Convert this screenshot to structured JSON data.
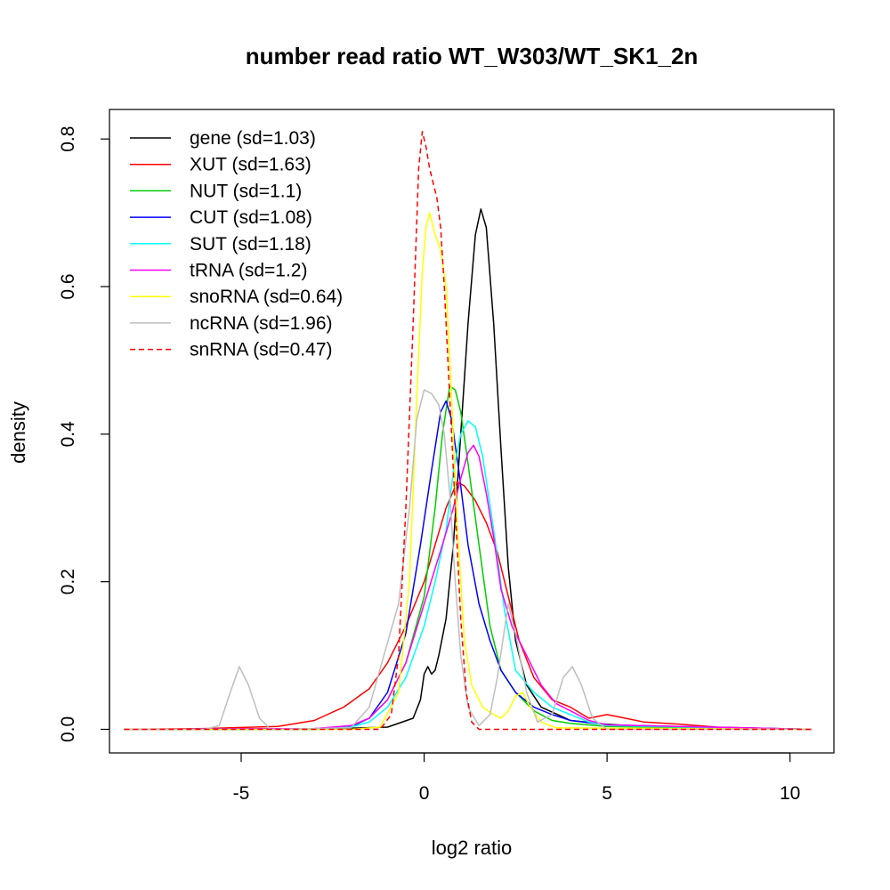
{
  "chart_data": {
    "type": "line",
    "title": "number read ratio WT_W303/WT_SK1_2n",
    "xlabel": "log2 ratio",
    "ylabel": "density",
    "xlim": [
      -8.6,
      11.2
    ],
    "ylim": [
      -0.032,
      0.84
    ],
    "x_ticks": [
      {
        "value": -5,
        "label": "-5"
      },
      {
        "value": 0,
        "label": "0"
      },
      {
        "value": 5,
        "label": "5"
      },
      {
        "value": 10,
        "label": "10"
      }
    ],
    "y_ticks": [
      {
        "value": 0.0,
        "label": "0.0"
      },
      {
        "value": 0.2,
        "label": "0.2"
      },
      {
        "value": 0.4,
        "label": "0.4"
      },
      {
        "value": 0.6,
        "label": "0.6"
      },
      {
        "value": 0.8,
        "label": "0.8"
      }
    ],
    "grid": false,
    "legend_position": "top-left",
    "series": [
      {
        "name": "gene (sd=1.03)",
        "color": "#000000",
        "dash": false,
        "points": [
          [
            -8.2,
            0
          ],
          [
            -3,
            0
          ],
          [
            -1,
            0.003
          ],
          [
            -0.3,
            0.015
          ],
          [
            -0.1,
            0.04
          ],
          [
            0,
            0.075
          ],
          [
            0.1,
            0.085
          ],
          [
            0.2,
            0.075
          ],
          [
            0.3,
            0.08
          ],
          [
            0.4,
            0.1
          ],
          [
            0.6,
            0.15
          ],
          [
            0.8,
            0.25
          ],
          [
            1.0,
            0.4
          ],
          [
            1.2,
            0.55
          ],
          [
            1.4,
            0.67
          ],
          [
            1.55,
            0.705
          ],
          [
            1.7,
            0.68
          ],
          [
            1.9,
            0.55
          ],
          [
            2.1,
            0.38
          ],
          [
            2.3,
            0.22
          ],
          [
            2.5,
            0.12
          ],
          [
            2.8,
            0.06
          ],
          [
            3.2,
            0.03
          ],
          [
            4,
            0.012
          ],
          [
            5,
            0.007
          ],
          [
            6,
            0.004
          ],
          [
            8,
            0.002
          ],
          [
            10.6,
            0
          ]
        ]
      },
      {
        "name": "XUT (sd=1.63)",
        "color": "#ff0000",
        "dash": false,
        "points": [
          [
            -8.2,
            0
          ],
          [
            -6,
            0.001
          ],
          [
            -4,
            0.004
          ],
          [
            -3,
            0.012
          ],
          [
            -2.2,
            0.03
          ],
          [
            -1.5,
            0.055
          ],
          [
            -1,
            0.09
          ],
          [
            -0.5,
            0.14
          ],
          [
            0,
            0.2
          ],
          [
            0.3,
            0.25
          ],
          [
            0.6,
            0.3
          ],
          [
            0.9,
            0.335
          ],
          [
            1.1,
            0.33
          ],
          [
            1.4,
            0.31
          ],
          [
            1.7,
            0.28
          ],
          [
            2.0,
            0.24
          ],
          [
            2.3,
            0.18
          ],
          [
            2.6,
            0.12
          ],
          [
            3.0,
            0.07
          ],
          [
            3.5,
            0.04
          ],
          [
            4,
            0.03
          ],
          [
            4.5,
            0.015
          ],
          [
            5,
            0.02
          ],
          [
            5.5,
            0.015
          ],
          [
            6,
            0.01
          ],
          [
            7,
            0.007
          ],
          [
            8,
            0.003
          ],
          [
            10.6,
            0
          ]
        ]
      },
      {
        "name": "NUT (sd=1.1)",
        "color": "#00cd00",
        "dash": false,
        "points": [
          [
            -8.2,
            0
          ],
          [
            -3,
            0
          ],
          [
            -2,
            0.003
          ],
          [
            -1.5,
            0.015
          ],
          [
            -1,
            0.04
          ],
          [
            -0.5,
            0.09
          ],
          [
            0,
            0.18
          ],
          [
            0.3,
            0.3
          ],
          [
            0.5,
            0.4
          ],
          [
            0.7,
            0.465
          ],
          [
            0.85,
            0.46
          ],
          [
            1.0,
            0.43
          ],
          [
            1.2,
            0.36
          ],
          [
            1.5,
            0.25
          ],
          [
            1.8,
            0.14
          ],
          [
            2.1,
            0.08
          ],
          [
            2.5,
            0.05
          ],
          [
            3,
            0.025
          ],
          [
            3.5,
            0.012
          ],
          [
            4,
            0.008
          ],
          [
            5,
            0.004
          ],
          [
            10.6,
            0
          ]
        ]
      },
      {
        "name": "CUT (sd=1.08)",
        "color": "#0000ff",
        "dash": false,
        "points": [
          [
            -8.2,
            0
          ],
          [
            -3,
            0.001
          ],
          [
            -2,
            0.004
          ],
          [
            -1.5,
            0.015
          ],
          [
            -1,
            0.05
          ],
          [
            -0.5,
            0.13
          ],
          [
            -0.1,
            0.25
          ],
          [
            0.2,
            0.35
          ],
          [
            0.45,
            0.43
          ],
          [
            0.6,
            0.445
          ],
          [
            0.75,
            0.42
          ],
          [
            0.95,
            0.35
          ],
          [
            1.2,
            0.25
          ],
          [
            1.5,
            0.17
          ],
          [
            1.8,
            0.12
          ],
          [
            2.1,
            0.08
          ],
          [
            2.5,
            0.05
          ],
          [
            3,
            0.03
          ],
          [
            3.5,
            0.02
          ],
          [
            4,
            0.012
          ],
          [
            5,
            0.006
          ],
          [
            10.6,
            0
          ]
        ]
      },
      {
        "name": "SUT (sd=1.18)",
        "color": "#00ffff",
        "dash": false,
        "points": [
          [
            -8.2,
            0
          ],
          [
            -3,
            0
          ],
          [
            -2,
            0.003
          ],
          [
            -1.5,
            0.01
          ],
          [
            -1,
            0.03
          ],
          [
            -0.5,
            0.07
          ],
          [
            0,
            0.14
          ],
          [
            0.3,
            0.2
          ],
          [
            0.6,
            0.27
          ],
          [
            0.8,
            0.35
          ],
          [
            1.0,
            0.4
          ],
          [
            1.2,
            0.418
          ],
          [
            1.4,
            0.41
          ],
          [
            1.6,
            0.37
          ],
          [
            1.9,
            0.27
          ],
          [
            2.2,
            0.16
          ],
          [
            2.5,
            0.08
          ],
          [
            3,
            0.05
          ],
          [
            3.5,
            0.03
          ],
          [
            4,
            0.02
          ],
          [
            4.5,
            0.01
          ],
          [
            5,
            0.005
          ],
          [
            10.6,
            0
          ]
        ]
      },
      {
        "name": "tRNA (sd=1.2)",
        "color": "#ff00ff",
        "dash": false,
        "points": [
          [
            -8.2,
            0
          ],
          [
            -3,
            0.001
          ],
          [
            -2,
            0.005
          ],
          [
            -1.5,
            0.015
          ],
          [
            -1,
            0.04
          ],
          [
            -0.5,
            0.09
          ],
          [
            0,
            0.17
          ],
          [
            0.5,
            0.25
          ],
          [
            0.8,
            0.3
          ],
          [
            1.0,
            0.34
          ],
          [
            1.2,
            0.375
          ],
          [
            1.35,
            0.385
          ],
          [
            1.5,
            0.37
          ],
          [
            1.7,
            0.32
          ],
          [
            1.9,
            0.26
          ],
          [
            2.1,
            0.19
          ],
          [
            2.4,
            0.14
          ],
          [
            2.8,
            0.1
          ],
          [
            3.2,
            0.06
          ],
          [
            3.6,
            0.035
          ],
          [
            4,
            0.025
          ],
          [
            4.5,
            0.012
          ],
          [
            5,
            0.006
          ],
          [
            10.6,
            0
          ]
        ]
      },
      {
        "name": "snoRNA (sd=0.64)",
        "color": "#ffff00",
        "dash": false,
        "points": [
          [
            -8.2,
            0
          ],
          [
            -2,
            0
          ],
          [
            -1.2,
            0.003
          ],
          [
            -0.7,
            0.05
          ],
          [
            -0.4,
            0.2
          ],
          [
            -0.2,
            0.45
          ],
          [
            -0.05,
            0.62
          ],
          [
            0.05,
            0.68
          ],
          [
            0.15,
            0.7
          ],
          [
            0.3,
            0.67
          ],
          [
            0.45,
            0.65
          ],
          [
            0.6,
            0.6
          ],
          [
            0.75,
            0.45
          ],
          [
            0.9,
            0.28
          ],
          [
            1.1,
            0.12
          ],
          [
            1.3,
            0.06
          ],
          [
            1.6,
            0.03
          ],
          [
            1.9,
            0.02
          ],
          [
            2.1,
            0.015
          ],
          [
            2.3,
            0.025
          ],
          [
            2.5,
            0.045
          ],
          [
            2.7,
            0.05
          ],
          [
            2.9,
            0.03
          ],
          [
            3.2,
            0.01
          ],
          [
            3.6,
            0.002
          ],
          [
            10.6,
            0
          ]
        ]
      },
      {
        "name": "ncRNA (sd=1.96)",
        "color": "#bebebe",
        "dash": false,
        "points": [
          [
            -8.2,
            0
          ],
          [
            -6,
            0
          ],
          [
            -5.6,
            0.005
          ],
          [
            -5.3,
            0.05
          ],
          [
            -5.05,
            0.085
          ],
          [
            -4.8,
            0.06
          ],
          [
            -4.5,
            0.015
          ],
          [
            -4.2,
            0
          ],
          [
            -2,
            0.002
          ],
          [
            -1.5,
            0.03
          ],
          [
            -1.1,
            0.1
          ],
          [
            -0.7,
            0.17
          ],
          [
            -0.4,
            0.3
          ],
          [
            -0.2,
            0.42
          ],
          [
            0,
            0.46
          ],
          [
            0.2,
            0.455
          ],
          [
            0.4,
            0.44
          ],
          [
            0.55,
            0.4
          ],
          [
            0.7,
            0.32
          ],
          [
            0.85,
            0.2
          ],
          [
            1.0,
            0.1
          ],
          [
            1.2,
            0.03
          ],
          [
            1.5,
            0.005
          ],
          [
            1.8,
            0.02
          ],
          [
            2.0,
            0.07
          ],
          [
            2.3,
            0.17
          ],
          [
            2.5,
            0.13
          ],
          [
            2.8,
            0.05
          ],
          [
            3.1,
            0.01
          ],
          [
            3.5,
            0.02
          ],
          [
            3.8,
            0.07
          ],
          [
            4.05,
            0.085
          ],
          [
            4.3,
            0.06
          ],
          [
            4.6,
            0.015
          ],
          [
            5,
            0
          ],
          [
            10.6,
            0
          ]
        ]
      },
      {
        "name": "snRNA (sd=0.47)",
        "color": "#ff0000",
        "dash": true,
        "points": [
          [
            -8.2,
            0
          ],
          [
            -1.2,
            0
          ],
          [
            -0.9,
            0.02
          ],
          [
            -0.7,
            0.1
          ],
          [
            -0.5,
            0.3
          ],
          [
            -0.3,
            0.55
          ],
          [
            -0.15,
            0.76
          ],
          [
            -0.05,
            0.81
          ],
          [
            0.05,
            0.79
          ],
          [
            0.15,
            0.76
          ],
          [
            0.25,
            0.74
          ],
          [
            0.35,
            0.72
          ],
          [
            0.45,
            0.68
          ],
          [
            0.55,
            0.6
          ],
          [
            0.7,
            0.45
          ],
          [
            0.85,
            0.3
          ],
          [
            1.0,
            0.15
          ],
          [
            1.15,
            0.05
          ],
          [
            1.3,
            0.01
          ],
          [
            1.5,
            0
          ],
          [
            10.6,
            0
          ]
        ]
      }
    ]
  }
}
